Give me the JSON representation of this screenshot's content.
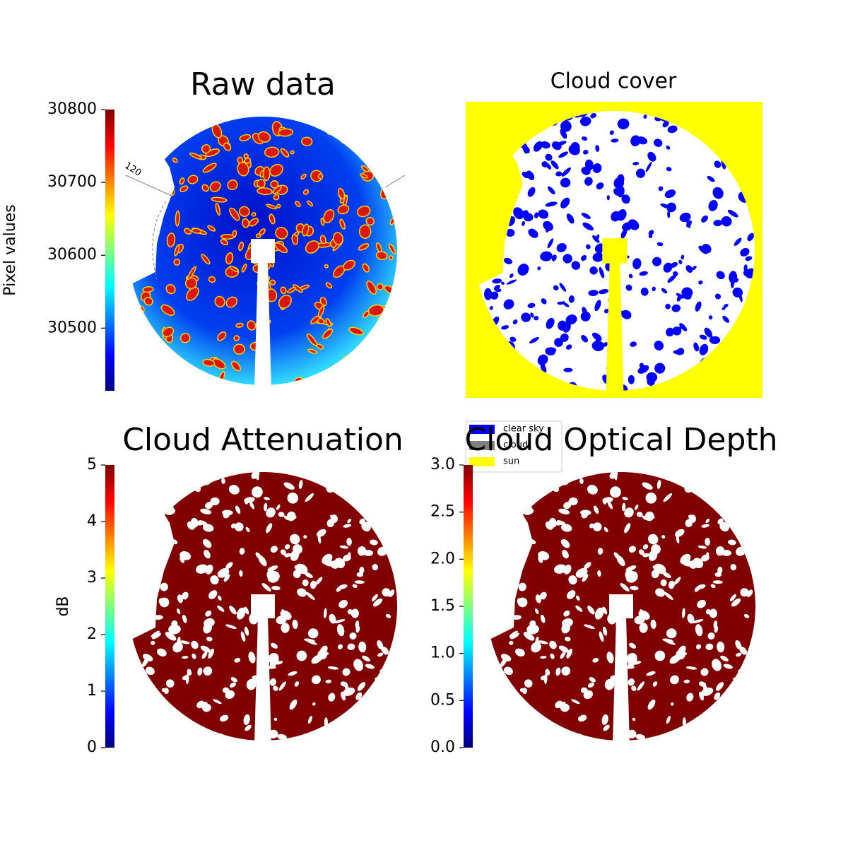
{
  "chart_data": [
    {
      "type": "image",
      "title": "Raw data",
      "colorbar_label": "Pixel values",
      "colormap": "jet",
      "ylim": [
        30414,
        30800
      ],
      "yticks": [
        30500,
        30600,
        30700,
        30800
      ],
      "annotation": "120"
    },
    {
      "type": "image",
      "title": "Cloud cover",
      "legend": [
        {
          "name": "clear sky",
          "color": "#0000ff"
        },
        {
          "name": "cloud",
          "color": "#808080"
        },
        {
          "name": "sun",
          "color": "#ffff00"
        }
      ]
    },
    {
      "type": "image",
      "title": "Cloud Attenuation",
      "colorbar_label": "dB",
      "colormap": "jet",
      "ylim": [
        0,
        5
      ],
      "yticks": [
        0,
        1,
        2,
        3,
        4,
        5
      ]
    },
    {
      "type": "image",
      "title": "Cloud Optical Depth",
      "colormap": "jet",
      "ylim": [
        0,
        3
      ],
      "yticks": [
        {
          "value": 0,
          "label": "0.0"
        },
        0.5,
        {
          "value": 1,
          "label": "1.0"
        },
        1.5,
        {
          "value": 2,
          "label": "2.0"
        },
        2.5,
        {
          "value": 3,
          "label": "3.0"
        }
      ]
    }
  ]
}
